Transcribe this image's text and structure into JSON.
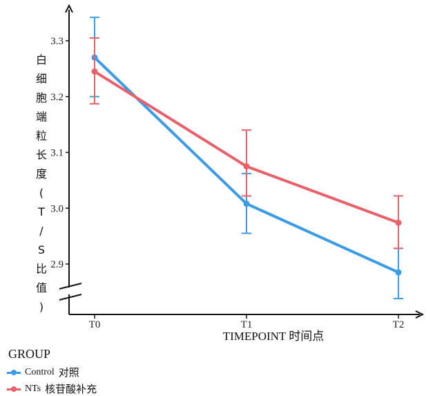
{
  "chart_data": {
    "type": "line",
    "xlabel": "TIMEPOINT 时间点",
    "ylabel": "白细胞端粒长度(T/S比值)",
    "categories": [
      "T0",
      "T1",
      "T2"
    ],
    "yticks": [
      2.9,
      3.0,
      3.1,
      3.2,
      3.3
    ],
    "ylim": [
      2.81,
      3.34
    ],
    "axis_break": true,
    "grid": false,
    "legend_title": "GROUP",
    "legend_position": "bottom-left",
    "series": [
      {
        "name": "Control 对照",
        "name_en": "Control",
        "name_cn": "对照",
        "color": "#3b9be6",
        "values": [
          3.27,
          3.008,
          2.885
        ],
        "err_upper": [
          3.342,
          3.062,
          2.928
        ],
        "err_lower": [
          3.2,
          2.955,
          2.838
        ]
      },
      {
        "name": "NTs 核苷酸补充",
        "name_en": "NTs",
        "name_cn": "核苷酸补充",
        "color": "#e8606a",
        "values": [
          3.245,
          3.075,
          2.974
        ],
        "err_upper": [
          3.305,
          3.14,
          3.022
        ],
        "err_lower": [
          3.187,
          3.022,
          2.928
        ]
      }
    ]
  }
}
